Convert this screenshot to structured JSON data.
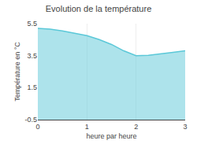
{
  "chart_data": {
    "type": "area",
    "title": "Evolution de la température",
    "xlabel": "heure par heure",
    "ylabel": "Température en °C",
    "x": [
      0,
      0.25,
      0.5,
      0.75,
      1.0,
      1.25,
      1.5,
      1.75,
      2.0,
      2.25,
      2.5,
      2.75,
      3.0
    ],
    "values": [
      5.2,
      5.15,
      5.05,
      4.9,
      4.75,
      4.5,
      4.2,
      3.8,
      3.5,
      3.52,
      3.6,
      3.7,
      3.8
    ],
    "color": "#5bc8d8",
    "xlim": [
      0,
      3
    ],
    "ylim": [
      -0.5,
      5.5
    ],
    "xticks": [
      0,
      1,
      2,
      3
    ],
    "yticks": [
      -0.5,
      1.5,
      3.5,
      5.5
    ],
    "grid": "x"
  }
}
